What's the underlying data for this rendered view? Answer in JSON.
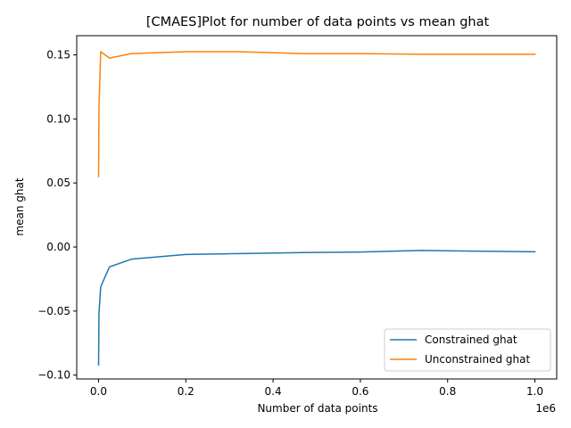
{
  "chart_data": {
    "type": "line",
    "title": "[CMAES]Plot for number of data points vs mean ghat",
    "xlabel": "Number of data points",
    "ylabel": "mean ghat",
    "x_offset_label": "1e6",
    "x_scale": 1000000,
    "xlim": [
      -50000,
      1050000
    ],
    "ylim": [
      -0.103,
      0.165
    ],
    "x_ticks": [
      0,
      200000,
      400000,
      600000,
      800000,
      1000000
    ],
    "x_tick_labels": [
      "0.0",
      "0.2",
      "0.4",
      "0.6",
      "0.8",
      "1.0"
    ],
    "y_ticks": [
      -0.1,
      -0.05,
      0.0,
      0.05,
      0.1,
      0.15
    ],
    "y_tick_labels": [
      "−0.10",
      "−0.05",
      "0.00",
      "0.05",
      "0.10",
      "0.15"
    ],
    "grid": false,
    "legend_position": "lower-right",
    "series": [
      {
        "name": "Constrained ghat",
        "color": "#1f77b4",
        "x": [
          100,
          1000,
          5000,
          25000,
          75000,
          200000,
          470000,
          600000,
          740000,
          1000000
        ],
        "y": [
          -0.092,
          -0.052,
          -0.031,
          -0.0155,
          -0.0095,
          -0.0058,
          -0.0043,
          -0.0039,
          -0.0027,
          -0.0037
        ]
      },
      {
        "name": "Unconstrained ghat",
        "color": "#ff7f0e",
        "x": [
          100,
          1000,
          5000,
          25000,
          75000,
          200000,
          320000,
          470000,
          600000,
          740000,
          1000000
        ],
        "y": [
          0.055,
          0.11,
          0.1525,
          0.1475,
          0.151,
          0.1525,
          0.1525,
          0.151,
          0.151,
          0.1505,
          0.1505
        ]
      }
    ]
  }
}
